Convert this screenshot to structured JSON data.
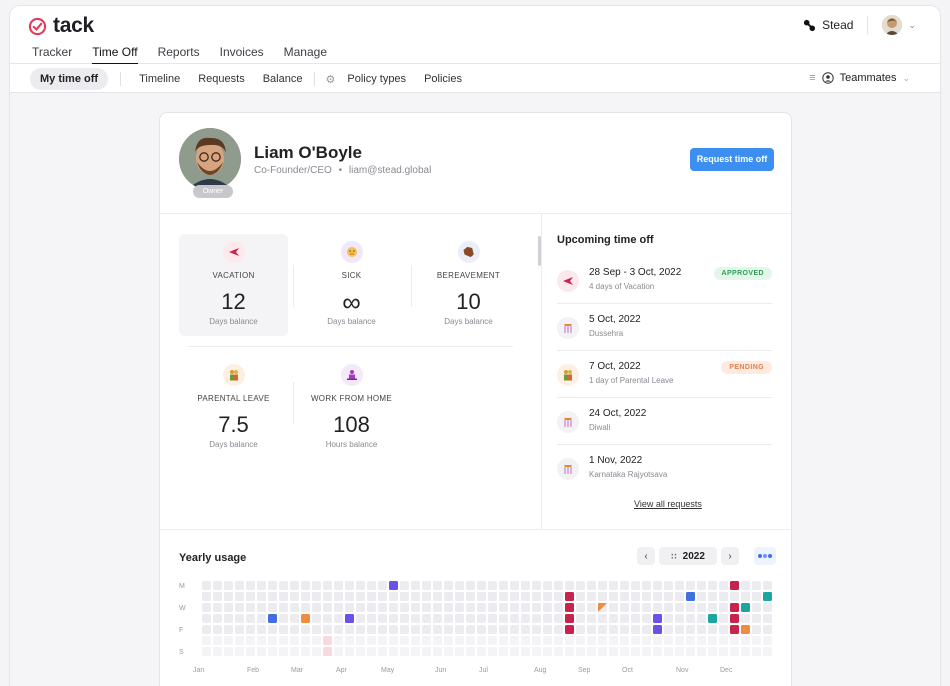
{
  "brand": {
    "name": "tack",
    "accent": "#e23b5c"
  },
  "main_nav": [
    "Tracker",
    "Time Off",
    "Reports",
    "Invoices",
    "Manage"
  ],
  "active_tab": "Time Off",
  "account": {
    "workspace": "Stead",
    "workspace_icon": "link-icon"
  },
  "sub_nav": {
    "active": "My time off",
    "items": [
      "Timeline",
      "Requests",
      "Balance"
    ],
    "settings_items": [
      "Policy types",
      "Policies"
    ],
    "filter": "Teammates"
  },
  "profile": {
    "name": "Liam O'Boyle",
    "role": "Co-Founder/CEO",
    "email": "liam@stead.global",
    "badge": "Owner",
    "request_button": "Request time off",
    "button_color": "#3c8ff1"
  },
  "balances": [
    {
      "label": "VACATION",
      "value": "12",
      "unit": "Days balance",
      "icon": "airplane-icon",
      "icon_bg": "#fde8ec",
      "highlight": true
    },
    {
      "label": "SICK",
      "value": "∞",
      "unit": "Days balance",
      "icon": "sick-face-icon",
      "icon_bg": "#efe8fb"
    },
    {
      "label": "BEREAVEMENT",
      "value": "10",
      "unit": "Days balance",
      "icon": "coffin-icon",
      "icon_bg": "#e9eef9"
    },
    {
      "label": "PARENTAL LEAVE",
      "value": "7.5",
      "unit": "Days balance",
      "icon": "family-icon",
      "icon_bg": "#fdf0e2"
    },
    {
      "label": "WORK FROM HOME",
      "value": "108",
      "unit": "Hours balance",
      "icon": "person-desk-icon",
      "icon_bg": "#f4e8fb"
    }
  ],
  "upcoming": {
    "title": "Upcoming time off",
    "items": [
      {
        "date": "28 Sep - 3 Oct, 2022",
        "desc": "4 days of Vacation",
        "icon": "airplane-icon",
        "badge": "APPROVED",
        "badge_color": "#2f9e5a",
        "badge_bg": "#e3f6e9"
      },
      {
        "date": "5 Oct, 2022",
        "desc": "Dussehra",
        "icon": "holiday-icon"
      },
      {
        "date": "7 Oct, 2022",
        "desc": "1 day of Parental Leave",
        "icon": "family-icon",
        "badge": "PENDING",
        "badge_color": "#e5804c",
        "badge_bg": "#fdebe0"
      },
      {
        "date": "24 Oct, 2022",
        "desc": "Diwali",
        "icon": "holiday-icon"
      },
      {
        "date": "1 Nov, 2022",
        "desc": "Karnataka Rajyotsava",
        "icon": "holiday-icon"
      }
    ],
    "view_all": "View all requests"
  },
  "yearly_usage": {
    "title": "Yearly usage",
    "year": "2022",
    "day_labels": [
      "M",
      "W",
      "F",
      "S"
    ],
    "months": [
      "Jan",
      "Feb",
      "Mar",
      "Apr",
      "May",
      "Jun",
      "Jul",
      "Aug",
      "Sep",
      "Oct",
      "Nov",
      "Dec"
    ],
    "colors": {
      "vacation": "#c8234d",
      "sick": "#6852e8",
      "bereavement": "#3f6fe0",
      "parental": "#ee8c3f",
      "wfh": "#1aa6a1",
      "empty": "#ececf0",
      "weekend": "#f4f4f6"
    }
  }
}
